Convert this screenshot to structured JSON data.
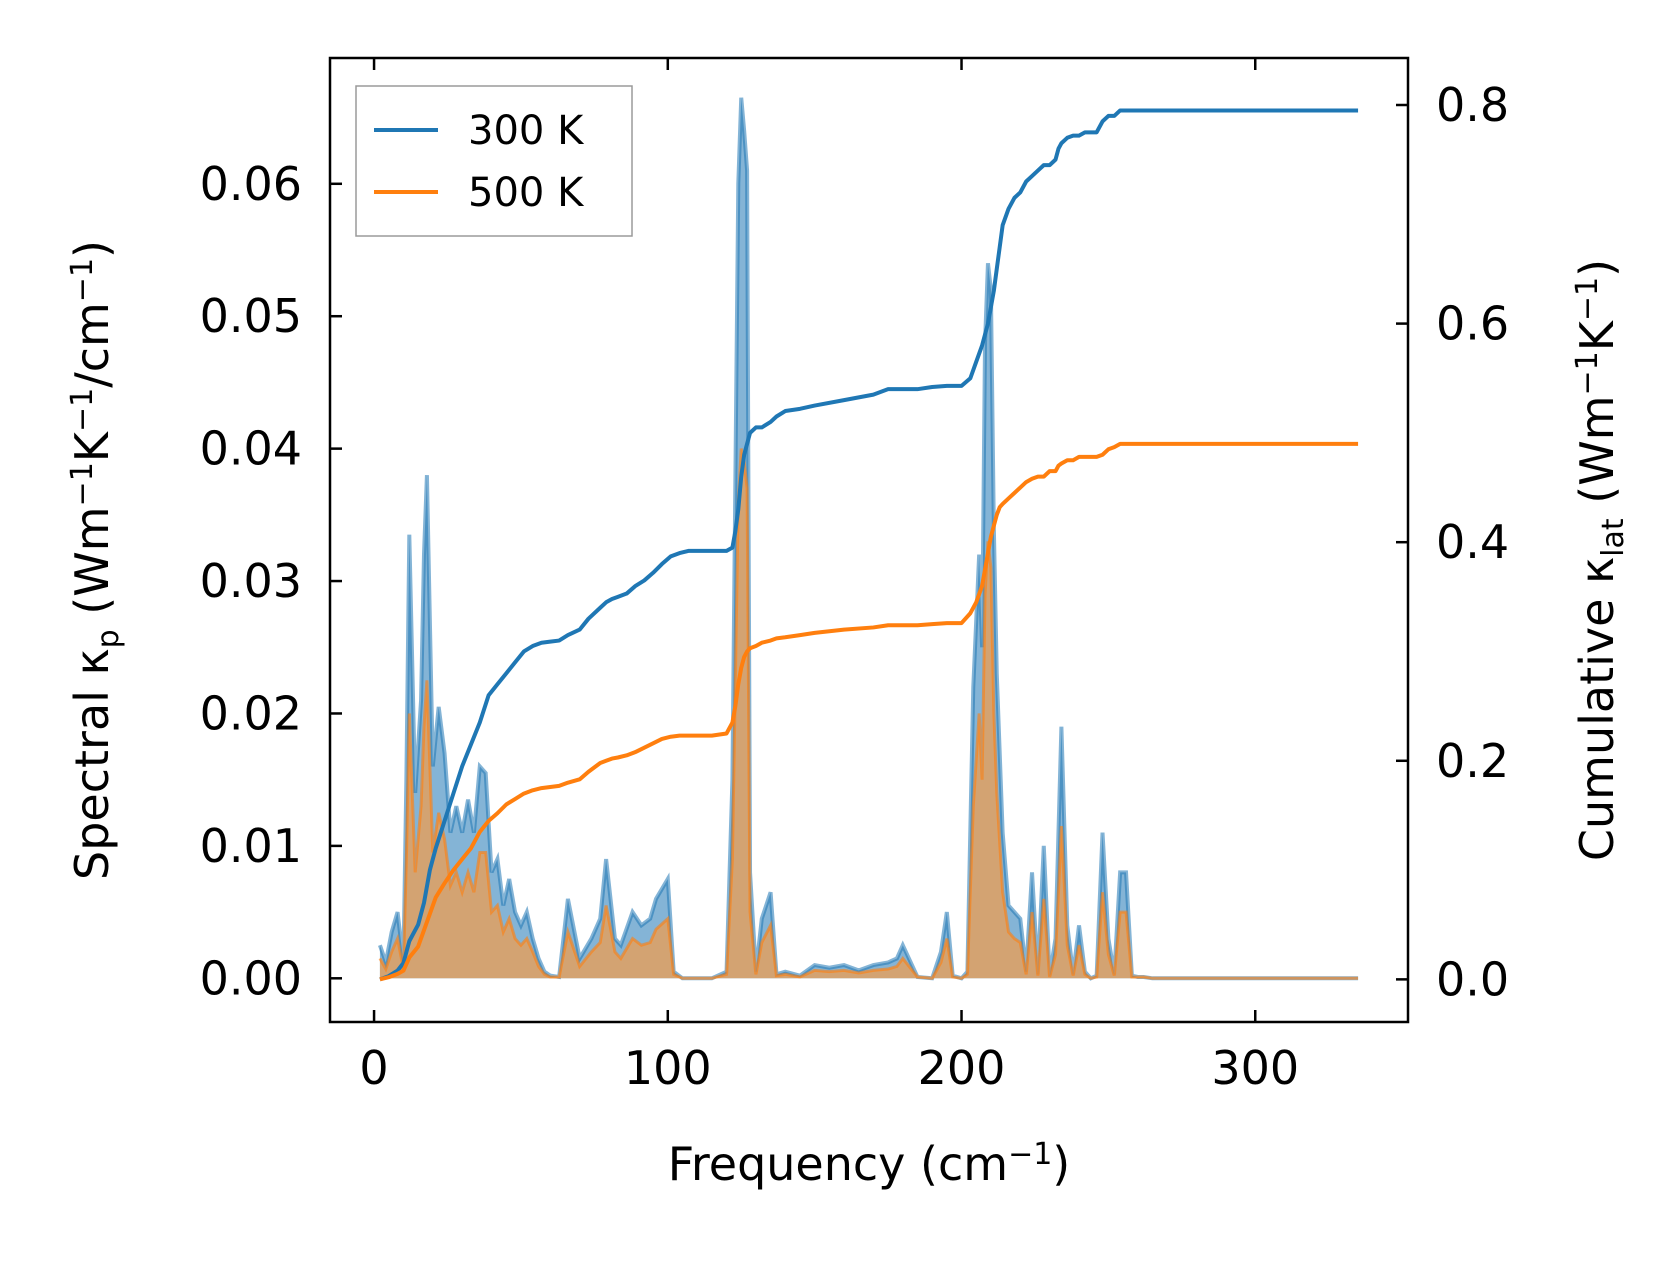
{
  "chart_data": {
    "type": "line",
    "xlabel": {
      "main": "Frequency (cm",
      "sup": "−1",
      "tail": ")"
    },
    "ylabel_left": {
      "main": "Spectral κ",
      "sub": "p",
      "units_prefix": " (Wm",
      "sup1": "−1",
      "mid": "K",
      "sup2": "−1",
      "mid2": "/cm",
      "sup3": "−1",
      "tail": ")"
    },
    "ylabel_right": {
      "main": "Cumulative κ",
      "sub": "lat",
      "units_prefix": " (Wm",
      "sup1": "−1",
      "mid": "K",
      "sup2": "−1",
      "tail": ")"
    },
    "xlim": [
      -15,
      352
    ],
    "ylim_left": [
      -0.0033,
      0.0695
    ],
    "ylim_right": [
      -0.039,
      0.843
    ],
    "x_ticks": [
      0,
      100,
      200,
      300
    ],
    "x_tick_labels": [
      "0",
      "100",
      "200",
      "300"
    ],
    "y_left_ticks": [
      0.0,
      0.01,
      0.02,
      0.03,
      0.04,
      0.05,
      0.06
    ],
    "y_left_tick_labels": [
      "0.00",
      "0.01",
      "0.02",
      "0.03",
      "0.04",
      "0.05",
      "0.06"
    ],
    "y_right_ticks": [
      0.0,
      0.2,
      0.4,
      0.6,
      0.8
    ],
    "y_right_tick_labels": [
      "0.0",
      "0.2",
      "0.4",
      "0.6",
      "0.8"
    ],
    "legend": {
      "position": "top-left",
      "entries": [
        "300 K",
        "500 K"
      ]
    },
    "grid": false,
    "colors": {
      "300K": "#1f77b4",
      "500K": "#ff7f0e",
      "fill_300K": "#1f77b4",
      "fill_500K": "#e0a060"
    },
    "series": [
      {
        "name": "300 K",
        "kind": "spectral",
        "x": [
          2,
          4,
          6,
          8,
          10,
          11,
          12,
          14,
          16,
          17,
          18,
          20,
          22,
          24,
          26,
          28,
          30,
          32,
          34,
          36,
          38,
          40,
          42,
          44,
          46,
          48,
          50,
          52,
          54,
          56,
          58,
          60,
          63,
          66,
          70,
          74,
          77,
          79,
          82,
          84,
          88,
          91,
          94,
          96,
          100,
          102,
          105,
          110,
          115,
          120,
          122,
          124,
          125,
          126,
          127,
          128,
          130,
          132,
          135,
          137,
          140,
          145,
          150,
          155,
          160,
          165,
          170,
          175,
          178,
          180,
          185,
          190,
          193,
          195,
          197,
          200,
          202,
          204,
          206,
          207,
          208,
          209,
          210,
          211,
          212,
          214,
          216,
          218,
          220,
          222,
          224,
          226,
          228,
          230,
          232,
          233,
          234,
          236,
          238,
          240,
          242,
          244,
          246,
          248,
          250,
          252,
          254,
          256,
          258,
          260,
          262,
          265,
          270,
          280,
          290,
          300,
          310,
          320,
          330,
          335
        ],
        "y": [
          0.0025,
          0.0012,
          0.0035,
          0.005,
          0.0012,
          0.015,
          0.0335,
          0.014,
          0.021,
          0.032,
          0.038,
          0.016,
          0.0205,
          0.017,
          0.011,
          0.013,
          0.011,
          0.0135,
          0.011,
          0.016,
          0.0155,
          0.008,
          0.009,
          0.0055,
          0.0075,
          0.005,
          0.004,
          0.005,
          0.003,
          0.0015,
          0.0005,
          0.0002,
          0.0001,
          0.006,
          0.0015,
          0.003,
          0.0045,
          0.009,
          0.003,
          0.0025,
          0.005,
          0.004,
          0.0045,
          0.006,
          0.0075,
          0.0005,
          0.0,
          0.0,
          0.0,
          0.0005,
          0.015,
          0.06,
          0.0665,
          0.064,
          0.061,
          0.008,
          0.0005,
          0.0045,
          0.0065,
          0.0003,
          0.0005,
          0.0002,
          0.001,
          0.0008,
          0.001,
          0.0006,
          0.001,
          0.0012,
          0.0015,
          0.0025,
          0.0001,
          0.0,
          0.002,
          0.005,
          0.0002,
          0.0,
          0.0005,
          0.022,
          0.032,
          0.025,
          0.048,
          0.054,
          0.052,
          0.034,
          0.023,
          0.011,
          0.0055,
          0.005,
          0.0045,
          0.0005,
          0.008,
          0.0003,
          0.01,
          0.0002,
          0.003,
          0.011,
          0.019,
          0.004,
          0.0003,
          0.004,
          0.0005,
          0.0,
          0.0002,
          0.011,
          0.003,
          0.0003,
          0.008,
          0.008,
          0.0002,
          0.0001,
          0.0001,
          0.0,
          0.0,
          0.0,
          0.0,
          0.0,
          0.0,
          0.0,
          0.0,
          0.0
        ]
      },
      {
        "name": "500 K",
        "kind": "spectral",
        "x": [
          2,
          4,
          6,
          8,
          10,
          11,
          12,
          14,
          16,
          17,
          18,
          20,
          22,
          24,
          26,
          28,
          30,
          32,
          34,
          36,
          38,
          40,
          42,
          44,
          46,
          48,
          50,
          52,
          54,
          56,
          58,
          60,
          63,
          66,
          70,
          74,
          77,
          79,
          82,
          84,
          88,
          91,
          94,
          96,
          100,
          102,
          105,
          110,
          115,
          120,
          122,
          124,
          125,
          126,
          127,
          128,
          130,
          132,
          135,
          137,
          140,
          145,
          150,
          155,
          160,
          165,
          170,
          175,
          178,
          180,
          185,
          190,
          193,
          195,
          197,
          200,
          202,
          204,
          206,
          207,
          208,
          209,
          210,
          211,
          212,
          214,
          216,
          218,
          220,
          222,
          224,
          226,
          228,
          230,
          232,
          233,
          234,
          236,
          238,
          240,
          242,
          244,
          246,
          248,
          250,
          252,
          254,
          256,
          258,
          260,
          262,
          265,
          270,
          280,
          290,
          300,
          310,
          320,
          330,
          335
        ],
        "y": [
          0.0015,
          0.0007,
          0.002,
          0.003,
          0.0007,
          0.009,
          0.02,
          0.008,
          0.013,
          0.019,
          0.0225,
          0.0095,
          0.0125,
          0.0105,
          0.007,
          0.008,
          0.0065,
          0.008,
          0.0065,
          0.0095,
          0.0095,
          0.005,
          0.0055,
          0.0035,
          0.0045,
          0.003,
          0.0025,
          0.003,
          0.002,
          0.0009,
          0.0003,
          0.0001,
          0.0001,
          0.0035,
          0.0009,
          0.002,
          0.0027,
          0.0055,
          0.002,
          0.0015,
          0.003,
          0.0025,
          0.0027,
          0.0037,
          0.0045,
          0.0003,
          0.0,
          0.0,
          0.0,
          0.0003,
          0.009,
          0.036,
          0.04,
          0.039,
          0.037,
          0.005,
          0.0003,
          0.0027,
          0.004,
          0.0002,
          0.0003,
          0.0001,
          0.0006,
          0.0005,
          0.0006,
          0.0004,
          0.0006,
          0.0007,
          0.0009,
          0.0015,
          0.0001,
          0.0,
          0.0012,
          0.003,
          0.0001,
          0.0,
          0.0003,
          0.013,
          0.02,
          0.015,
          0.029,
          0.033,
          0.031,
          0.02,
          0.014,
          0.0065,
          0.0035,
          0.003,
          0.0027,
          0.0003,
          0.005,
          0.0002,
          0.006,
          0.0001,
          0.0018,
          0.0065,
          0.0115,
          0.0025,
          0.0002,
          0.0025,
          0.0003,
          0.0,
          0.0001,
          0.0065,
          0.0018,
          0.0002,
          0.005,
          0.005,
          0.0001,
          0.0001,
          0.0001,
          0.0,
          0.0,
          0.0,
          0.0,
          0.0,
          0.0,
          0.0,
          0.0,
          0.0
        ]
      },
      {
        "name": "300 K",
        "kind": "cumulative",
        "x": [
          2,
          5,
          8,
          10,
          12,
          15,
          17,
          19,
          21,
          24,
          27,
          30,
          33,
          36,
          39,
          42,
          45,
          48,
          51,
          54,
          57,
          60,
          63,
          66,
          70,
          73,
          77,
          79,
          81,
          83,
          86,
          89,
          92,
          95,
          98,
          101,
          104,
          107,
          110,
          115,
          120,
          122,
          123,
          124,
          125,
          126,
          127,
          128,
          130,
          132,
          135,
          137,
          140,
          145,
          150,
          160,
          170,
          175,
          180,
          185,
          190,
          195,
          200,
          203,
          205,
          207,
          208,
          209,
          210,
          211,
          212,
          213,
          214,
          216,
          218,
          220,
          222,
          224,
          226,
          228,
          230,
          232,
          233,
          234,
          236,
          238,
          240,
          242,
          244,
          246,
          248,
          250,
          252,
          254,
          256,
          258,
          260,
          270,
          280,
          290,
          300,
          310,
          320,
          330,
          335
        ],
        "y": [
          0.0,
          0.003,
          0.008,
          0.015,
          0.035,
          0.05,
          0.07,
          0.1,
          0.12,
          0.145,
          0.17,
          0.195,
          0.215,
          0.235,
          0.26,
          0.27,
          0.28,
          0.29,
          0.3,
          0.305,
          0.308,
          0.309,
          0.31,
          0.315,
          0.32,
          0.33,
          0.34,
          0.345,
          0.348,
          0.35,
          0.353,
          0.36,
          0.365,
          0.372,
          0.38,
          0.387,
          0.39,
          0.392,
          0.392,
          0.392,
          0.392,
          0.395,
          0.41,
          0.43,
          0.46,
          0.48,
          0.49,
          0.5,
          0.505,
          0.505,
          0.51,
          0.515,
          0.52,
          0.522,
          0.525,
          0.53,
          0.535,
          0.54,
          0.54,
          0.54,
          0.542,
          0.543,
          0.543,
          0.55,
          0.565,
          0.58,
          0.59,
          0.6,
          0.615,
          0.63,
          0.65,
          0.67,
          0.69,
          0.705,
          0.715,
          0.72,
          0.73,
          0.735,
          0.74,
          0.745,
          0.745,
          0.75,
          0.76,
          0.765,
          0.77,
          0.772,
          0.772,
          0.775,
          0.775,
          0.775,
          0.785,
          0.79,
          0.79,
          0.795,
          0.795,
          0.795,
          0.795,
          0.795,
          0.795,
          0.795,
          0.795,
          0.795,
          0.795,
          0.795,
          0.795
        ]
      },
      {
        "name": "500 K",
        "kind": "cumulative",
        "x": [
          2,
          5,
          8,
          10,
          12,
          15,
          17,
          19,
          21,
          24,
          27,
          30,
          33,
          36,
          39,
          42,
          45,
          48,
          51,
          54,
          57,
          60,
          63,
          66,
          70,
          73,
          77,
          79,
          81,
          83,
          86,
          89,
          92,
          95,
          98,
          101,
          104,
          107,
          110,
          115,
          120,
          122,
          123,
          124,
          125,
          126,
          127,
          128,
          130,
          132,
          135,
          137,
          140,
          145,
          150,
          160,
          170,
          175,
          180,
          185,
          190,
          195,
          200,
          203,
          205,
          207,
          208,
          209,
          210,
          211,
          212,
          213,
          214,
          216,
          218,
          220,
          222,
          224,
          226,
          228,
          230,
          232,
          233,
          234,
          236,
          238,
          240,
          242,
          244,
          246,
          248,
          250,
          252,
          254,
          256,
          258,
          260,
          270,
          280,
          290,
          300,
          310,
          320,
          330,
          335
        ],
        "y": [
          0.0,
          0.002,
          0.005,
          0.008,
          0.02,
          0.03,
          0.045,
          0.06,
          0.075,
          0.088,
          0.1,
          0.11,
          0.12,
          0.135,
          0.145,
          0.152,
          0.16,
          0.165,
          0.17,
          0.173,
          0.175,
          0.176,
          0.177,
          0.18,
          0.183,
          0.19,
          0.198,
          0.2,
          0.202,
          0.203,
          0.205,
          0.208,
          0.212,
          0.216,
          0.22,
          0.222,
          0.223,
          0.223,
          0.223,
          0.223,
          0.225,
          0.235,
          0.25,
          0.27,
          0.285,
          0.295,
          0.3,
          0.303,
          0.305,
          0.308,
          0.31,
          0.312,
          0.313,
          0.315,
          0.317,
          0.32,
          0.322,
          0.324,
          0.324,
          0.324,
          0.325,
          0.326,
          0.326,
          0.335,
          0.345,
          0.36,
          0.375,
          0.39,
          0.405,
          0.415,
          0.425,
          0.432,
          0.435,
          0.44,
          0.445,
          0.45,
          0.455,
          0.458,
          0.46,
          0.46,
          0.465,
          0.465,
          0.47,
          0.472,
          0.475,
          0.475,
          0.478,
          0.478,
          0.478,
          0.478,
          0.48,
          0.485,
          0.487,
          0.49,
          0.49,
          0.49,
          0.49,
          0.49,
          0.49,
          0.49,
          0.49,
          0.49,
          0.49,
          0.49,
          0.49
        ]
      }
    ]
  }
}
